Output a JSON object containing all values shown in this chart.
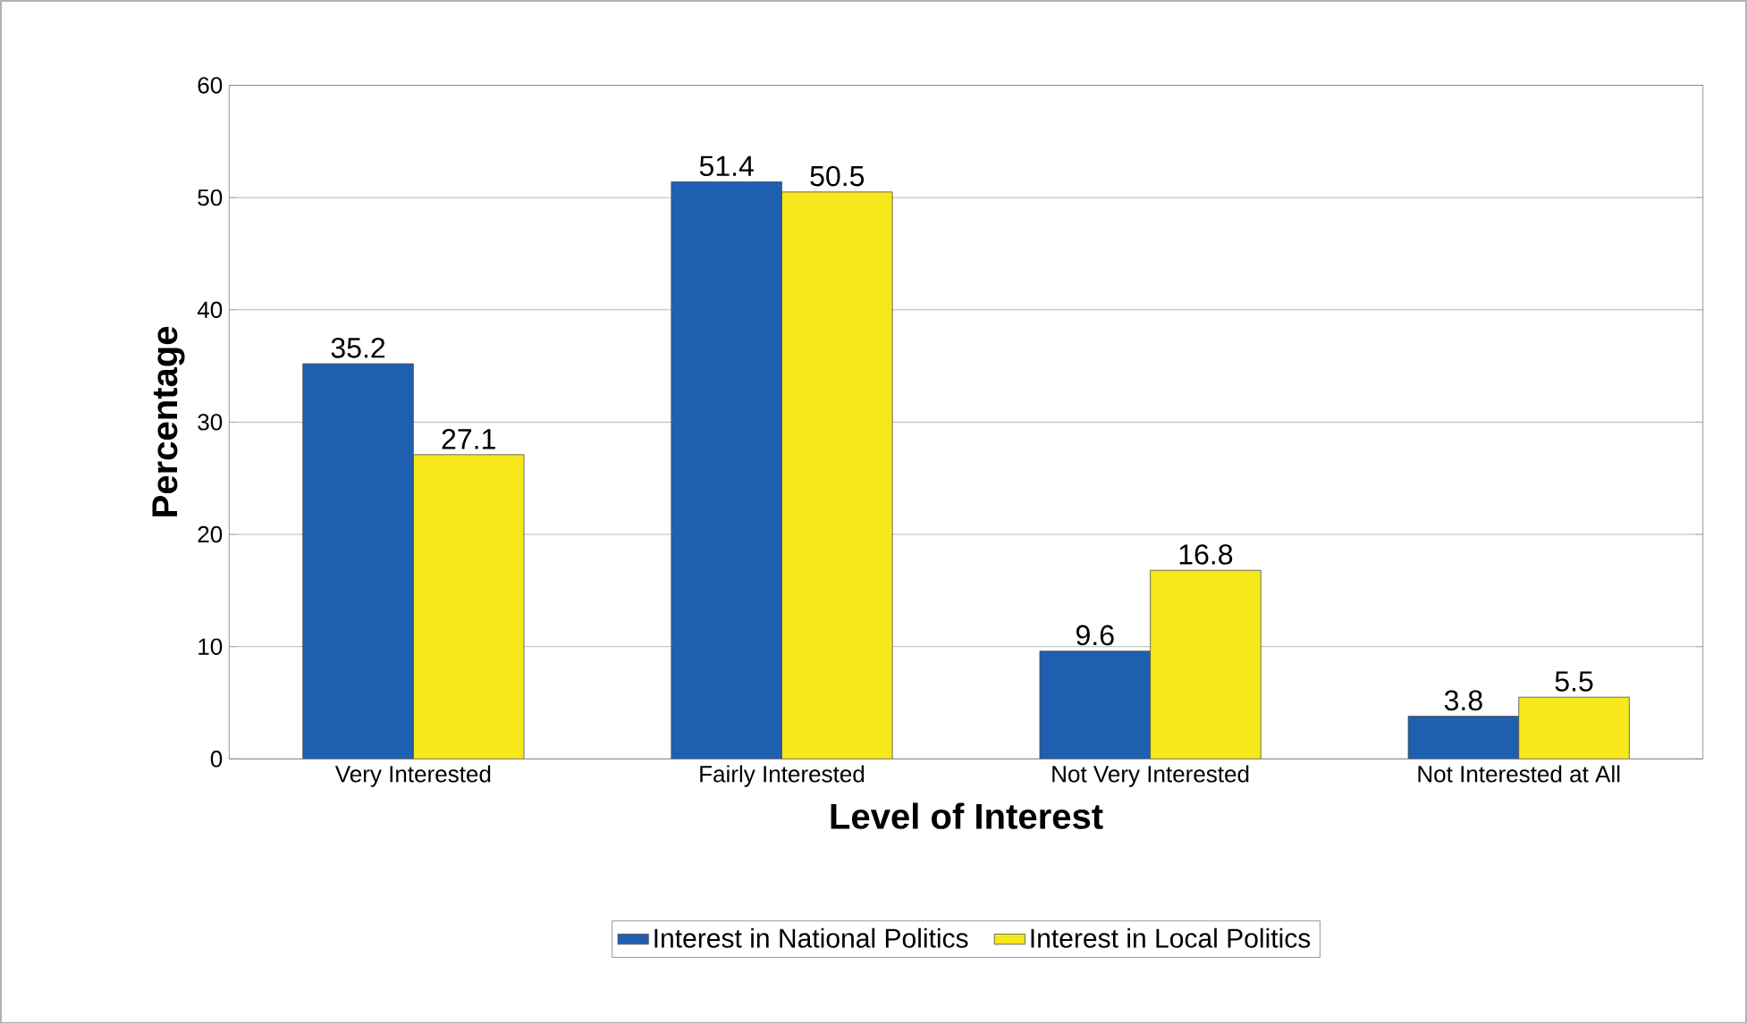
{
  "chart_data": {
    "type": "bar",
    "xlabel": "Level of Interest",
    "ylabel": "Percentage",
    "categories": [
      "Very Interested",
      "Fairly Interested",
      "Not Very Interested",
      "Not Interested at All"
    ],
    "series": [
      {
        "name": "Interest in National Politics",
        "color": "#1f5fb0",
        "values": [
          35.2,
          51.4,
          9.6,
          3.8
        ]
      },
      {
        "name": "Interest in Local Politics",
        "color": "#f7e81c",
        "values": [
          27.1,
          50.5,
          16.8,
          5.5
        ]
      }
    ],
    "ylim": [
      0,
      60
    ],
    "yticks": [
      0,
      10,
      20,
      30,
      40,
      50,
      60
    ],
    "grid": "y",
    "legend": "bottom",
    "data_labels": true
  }
}
